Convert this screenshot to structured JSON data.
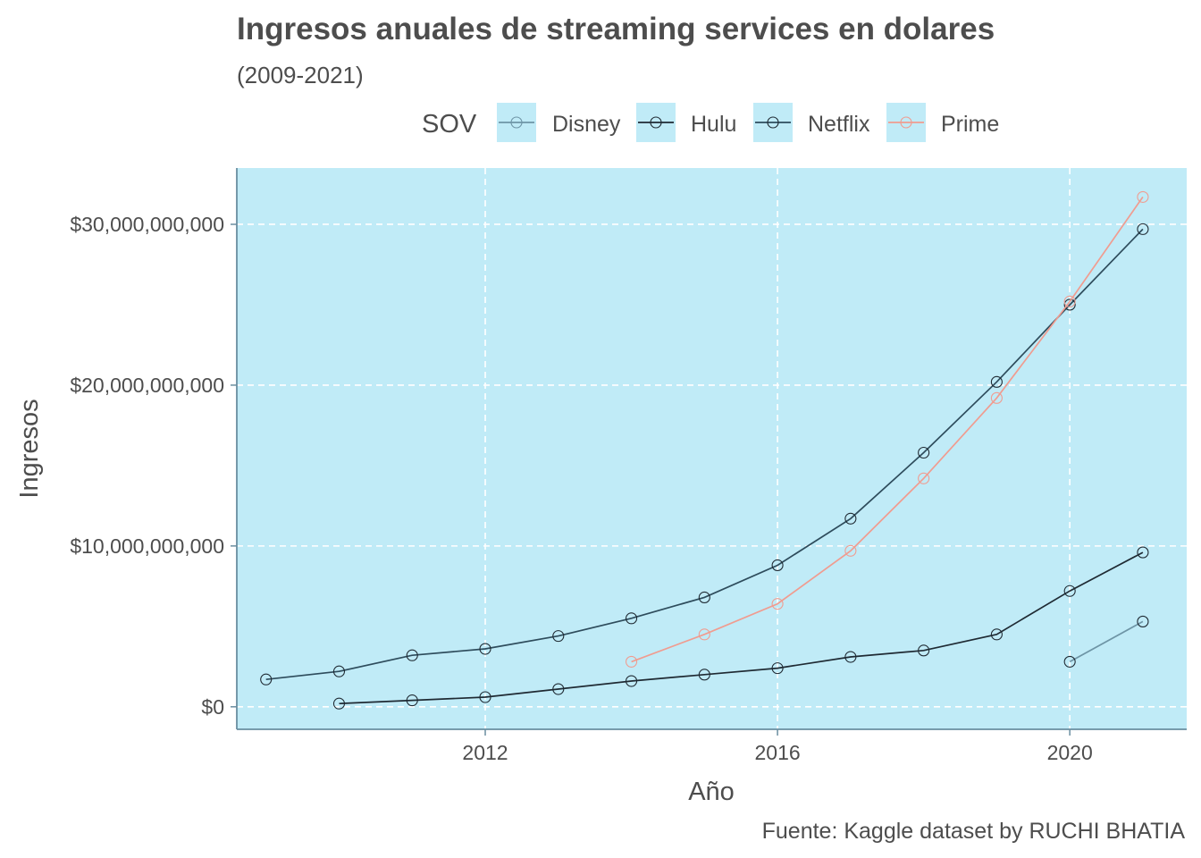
{
  "chart_data": {
    "type": "line",
    "title": "Ingresos anuales de streaming services en dolares",
    "subtitle": "(2009-2021)",
    "xlabel": "Año",
    "ylabel": "Ingresos",
    "caption": "Fuente: Kaggle dataset by RUCHI BHATIA",
    "legend": {
      "title": "SOV",
      "placement": "top"
    },
    "xlim": [
      2008.6,
      2021.6
    ],
    "ylim": [
      -1400000000,
      33500000000
    ],
    "x_ticks": [
      2012,
      2016,
      2020
    ],
    "x_tick_labels": [
      "2012",
      "2016",
      "2020"
    ],
    "y_ticks": [
      0,
      10000000000,
      20000000000,
      30000000000
    ],
    "y_tick_labels": [
      "$0",
      "$10,000,000,000",
      "$20,000,000,000",
      "$30,000,000,000"
    ],
    "grid": true,
    "panel_background": "#c0ebf7",
    "series": [
      {
        "name": "Disney",
        "color": "#6e95a6",
        "x": [
          2020,
          2021
        ],
        "values": [
          2800000000,
          5300000000
        ]
      },
      {
        "name": "Hulu",
        "color": "#1f2a33",
        "x": [
          2010,
          2011,
          2012,
          2013,
          2014,
          2015,
          2016,
          2017,
          2018,
          2019,
          2020,
          2021
        ],
        "values": [
          200000000,
          400000000,
          600000000,
          1100000000,
          1600000000,
          2000000000,
          2400000000,
          3100000000,
          3500000000,
          4500000000,
          7200000000,
          9600000000
        ]
      },
      {
        "name": "Netflix",
        "color": "#2e4c5c",
        "x": [
          2009,
          2010,
          2011,
          2012,
          2013,
          2014,
          2015,
          2016,
          2017,
          2018,
          2019,
          2020,
          2021
        ],
        "values": [
          1700000000,
          2200000000,
          3200000000,
          3600000000,
          4400000000,
          5500000000,
          6800000000,
          8800000000,
          11700000000,
          15800000000,
          20200000000,
          25000000000,
          29700000000
        ]
      },
      {
        "name": "Prime",
        "color": "#f09c90",
        "x": [
          2014,
          2015,
          2016,
          2017,
          2018,
          2019,
          2020,
          2021
        ],
        "values": [
          2800000000,
          4500000000,
          6400000000,
          9700000000,
          14200000000,
          19200000000,
          25200000000,
          31700000000
        ]
      }
    ]
  }
}
